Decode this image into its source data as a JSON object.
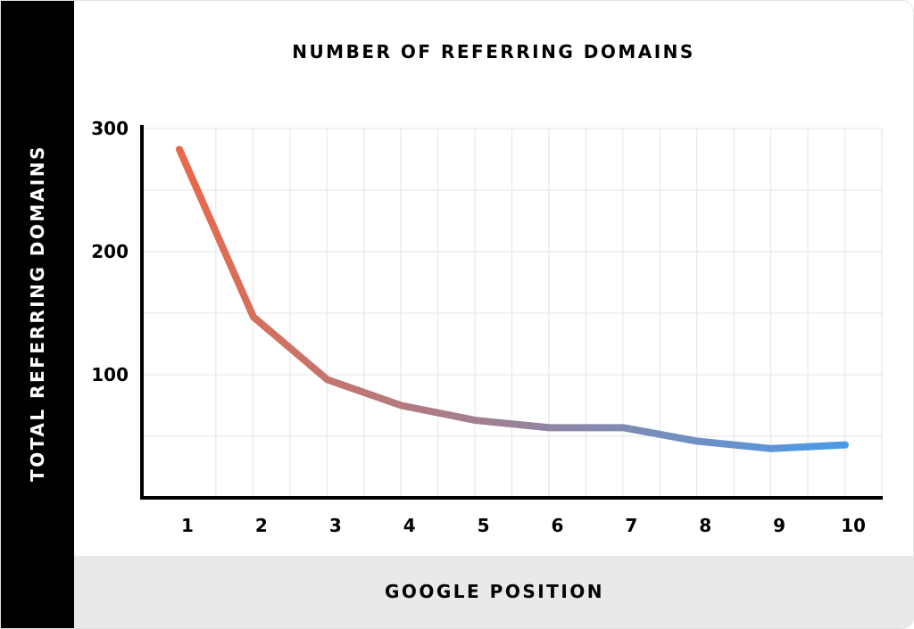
{
  "chart_data": {
    "type": "line",
    "title": "NUMBER OF REFERRING DOMAINS",
    "xlabel": "GOOGLE POSITION",
    "ylabel": "TOTAL REFERRING DOMAINS",
    "categories": [
      "1",
      "2",
      "3",
      "4",
      "5",
      "6",
      "7",
      "8",
      "9",
      "10"
    ],
    "values": [
      283,
      147,
      96,
      75,
      63,
      57,
      57,
      46,
      40,
      43
    ],
    "ylim": [
      0,
      300
    ],
    "yticks": [
      "100",
      "200",
      "300"
    ],
    "grid": true,
    "colors": {
      "start": "#e8694a",
      "end": "#4a9be8",
      "grid": "#e4e4e4",
      "axis": "#000000"
    }
  }
}
